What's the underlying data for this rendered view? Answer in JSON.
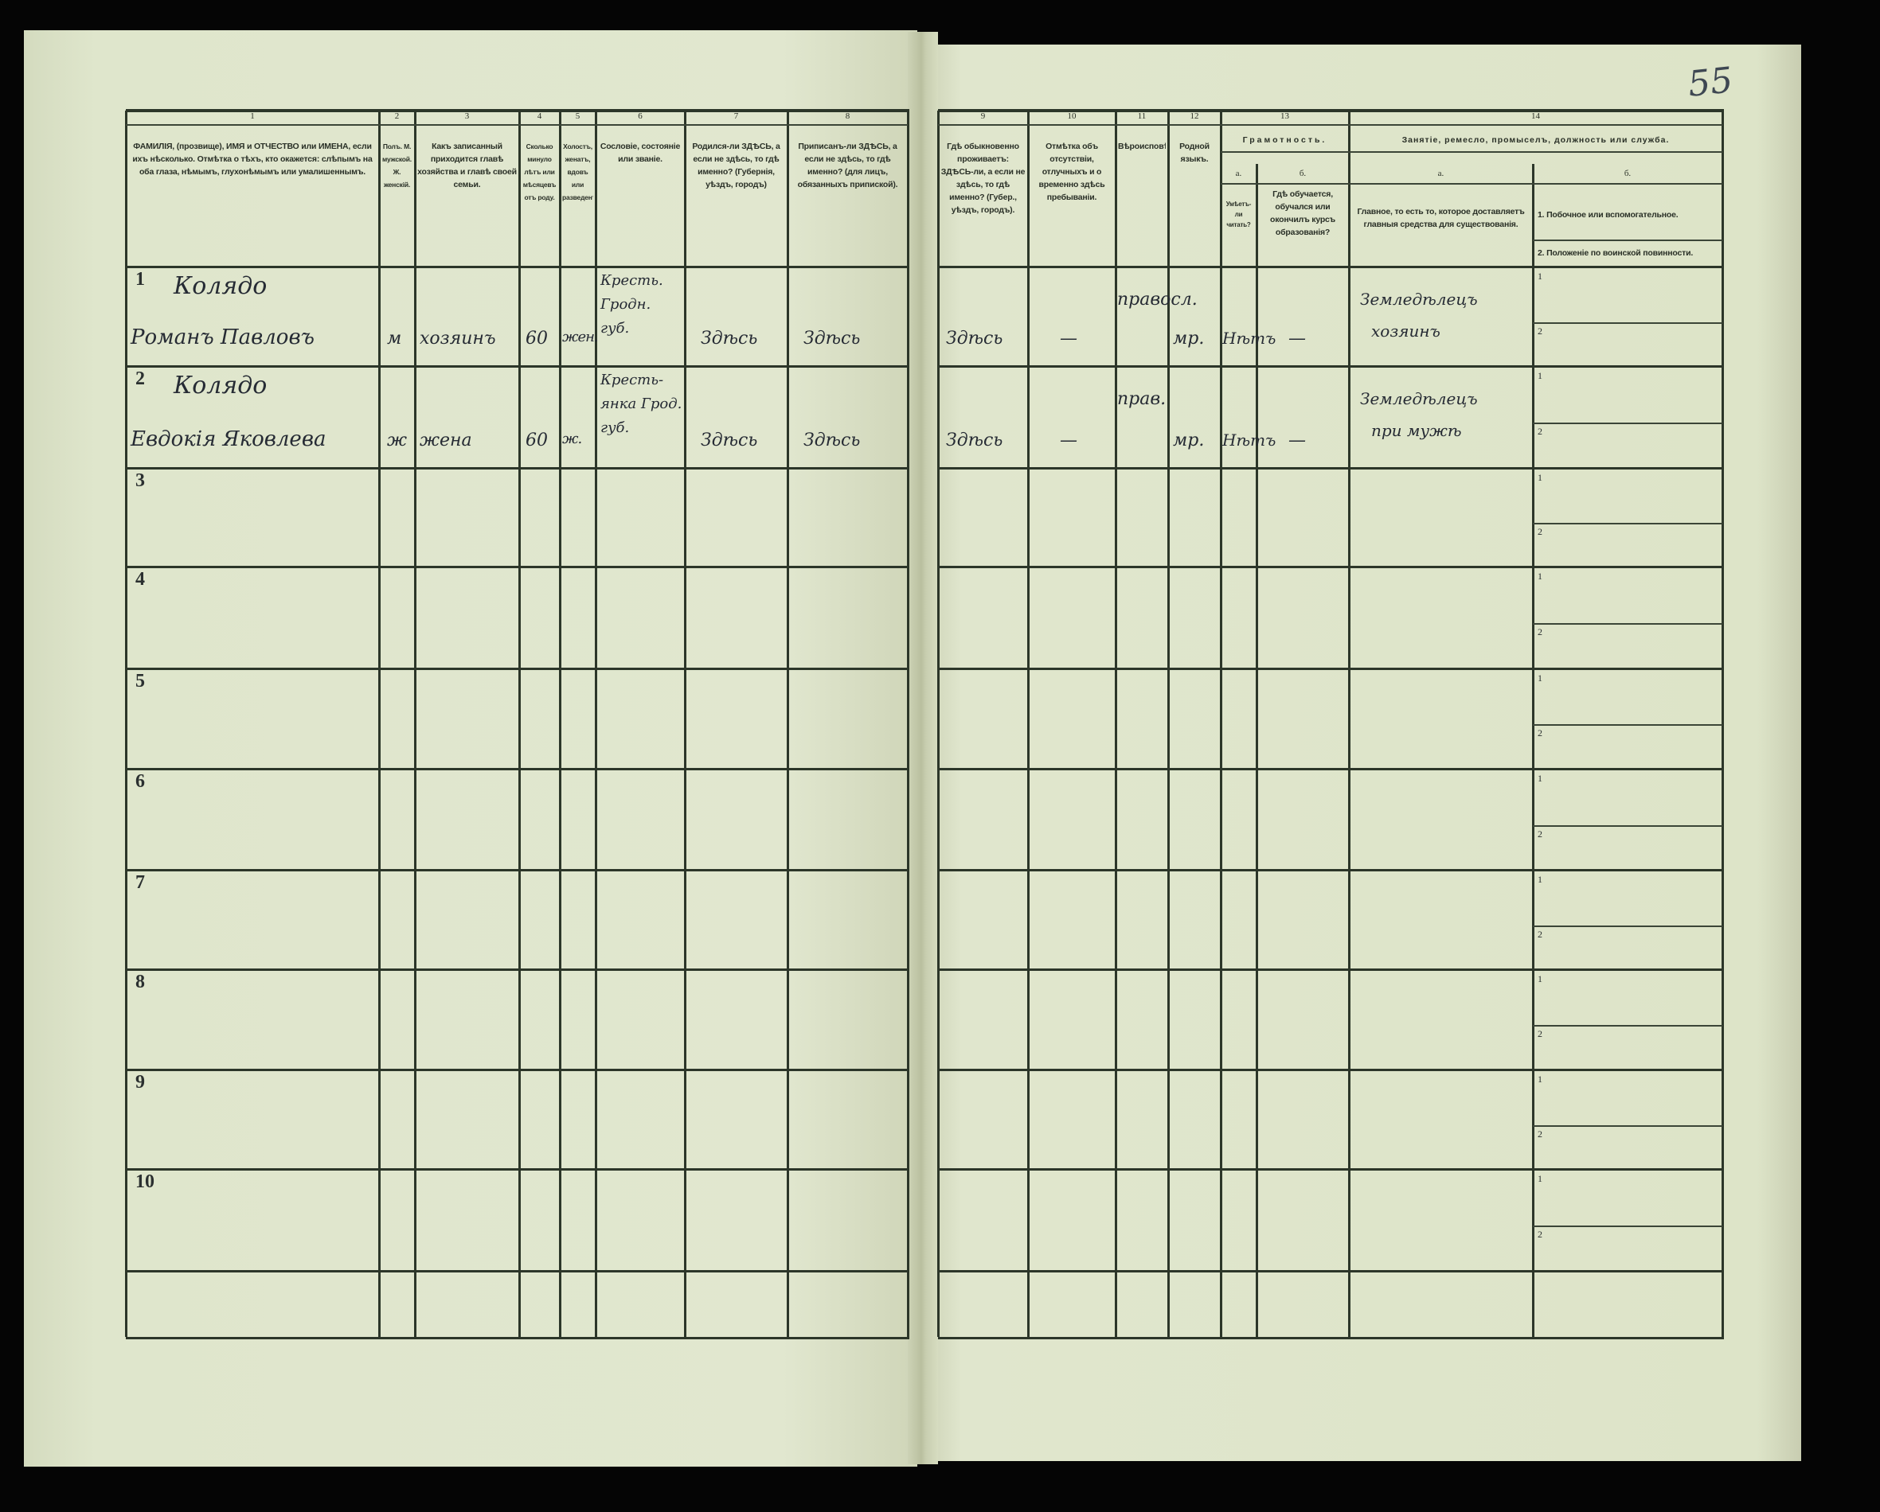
{
  "page_number": "55",
  "header": {
    "columns": [
      {
        "num": "1",
        "label": "ФАМИЛІЯ, (прозвище), ИМЯ и ОТЧЕСТВО или ИМЕНА, если ихъ нѣсколько. Отмѣтка о тѣхъ, кто окажется: слѣпымъ на оба глаза, нѣмымъ, глухонѣмымъ или умалишеннымъ."
      },
      {
        "num": "2",
        "label": "Полъ. М. мужской. Ж. женскій."
      },
      {
        "num": "3",
        "label": "Какъ записанный приходится главѣ хозяйства и главѣ своей семьи."
      },
      {
        "num": "4",
        "label": "Сколько минуло лѣтъ или мѣсяцевъ отъ роду."
      },
      {
        "num": "5",
        "label": "Холостъ, женатъ, вдовъ или разведенъ."
      },
      {
        "num": "6",
        "label": "Сословіе, состояніе или званіе."
      },
      {
        "num": "7",
        "label": "Родился-ли ЗДѢСЬ, а если не здѣсь, то гдѣ именно? (Губернія, уѣздъ, городъ)"
      },
      {
        "num": "8",
        "label": "Приписанъ-ли ЗДѢСЬ, а если не здѣсь, то гдѣ именно? (для лицъ, обязанныхъ припиской)."
      },
      {
        "num": "9",
        "label": "Гдѣ обыкновенно проживаетъ: ЗДѢСЬ-ли, а если не здѣсь, то гдѣ именно? (Губер., уѣздъ, городъ)."
      },
      {
        "num": "10",
        "label": "Отмѣтка объ отсутствіи, отлучныхъ и о временно здѣсь пребываніи."
      },
      {
        "num": "11",
        "label": "Вѣроисповѣданіе."
      },
      {
        "num": "12",
        "label": "Родной языкъ."
      }
    ],
    "col13": {
      "num": "13",
      "title": "Грамотность.",
      "a": "а.",
      "b": "б.",
      "a_label": "Умѣетъ-ли читать?",
      "b_label": "Гдѣ обучается, обучался или окончилъ курсъ образованія?"
    },
    "col14": {
      "num": "14",
      "title": "Занятіе, ремесло, промыселъ, должность или служба.",
      "a": "а.",
      "b": "б.",
      "a_label": "Главное, то есть то, которое доставляетъ главныя средства для существованія.",
      "b1": "1. Побочное или вспомогательное.",
      "b2": "2. Положеніе по воинской повинности."
    }
  },
  "rows": [
    {
      "n": "1",
      "surname": "Колядо",
      "name": "Романъ Павловъ",
      "sex": "м",
      "relation": "хозяинъ",
      "age": "60",
      "marital": "жен.",
      "estate": [
        "Кресть.",
        "Гродн.",
        "губ."
      ],
      "born": "Здѣсь",
      "registered": "Здѣсь",
      "resides": "Здѣсь",
      "absence": "—",
      "religion": "правосл.",
      "language": "мр.",
      "literate": "Нѣтъ",
      "education": "—",
      "occupation": [
        "Земледѣлецъ",
        "хозяинъ"
      ]
    },
    {
      "n": "2",
      "surname": "Колядо",
      "name": "Евдокія Яковлева",
      "sex": "ж",
      "relation": "жена",
      "age": "60",
      "marital": "ж.",
      "estate": [
        "Кресть-",
        "янка Грод.",
        "губ."
      ],
      "born": "Здѣсь",
      "registered": "Здѣсь",
      "resides": "Здѣсь",
      "absence": "—",
      "religion": "прав.",
      "language": "мр.",
      "literate": "Нѣтъ",
      "education": "—",
      "occupation": [
        "Земледѣлецъ",
        "при мужѣ"
      ]
    },
    {
      "n": "3"
    },
    {
      "n": "4"
    },
    {
      "n": "5"
    },
    {
      "n": "6"
    },
    {
      "n": "7"
    },
    {
      "n": "8"
    },
    {
      "n": "9"
    },
    {
      "n": "10"
    }
  ],
  "sub_labels": [
    "1",
    "2"
  ]
}
